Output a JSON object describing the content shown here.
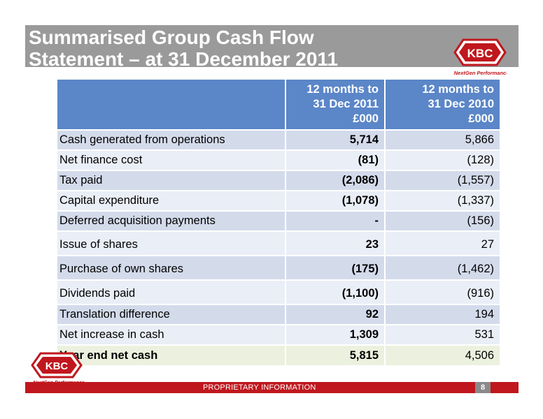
{
  "title": {
    "line1": "Summarised Group Cash Flow",
    "line2": "Statement – at 31 December 2011"
  },
  "logo": {
    "text": "KBC",
    "tagline": "NextGen Performance",
    "brand_color": "#c0171e"
  },
  "table": {
    "headers": {
      "current": [
        "12 months to",
        "31 Dec 2011",
        "£000"
      ],
      "previous": [
        "12 months to",
        "31 Dec 2010",
        "£000"
      ]
    },
    "rows": [
      {
        "label": "Cash generated from operations",
        "current": "5,714",
        "previous": "5,866"
      },
      {
        "label": "Net finance cost",
        "current": "(81)",
        "previous": "(128)"
      },
      {
        "label": "Tax paid",
        "current": "(2,086)",
        "previous": "(1,557)"
      },
      {
        "label": "Capital expenditure",
        "current": "(1,078)",
        "previous": "(1,337)"
      },
      {
        "label": "Deferred acquisition payments",
        "current": "-",
        "previous": "(156)"
      },
      {
        "label": "Issue of shares",
        "current": "23",
        "previous": "27"
      },
      {
        "label": "Purchase of own shares",
        "current": "(175)",
        "previous": "(1,462)"
      },
      {
        "label": "Dividends paid",
        "current": "(1,100)",
        "previous": "(916)"
      },
      {
        "label": "Translation difference",
        "current": "92",
        "previous": "194"
      },
      {
        "label": "Net increase in cash",
        "current": "1,309",
        "previous": "531"
      },
      {
        "label": "Year end net cash",
        "current": "5,815",
        "previous": "4,506"
      }
    ]
  },
  "footer": {
    "text": "PROPRIETARY INFORMATION",
    "page": "8"
  }
}
